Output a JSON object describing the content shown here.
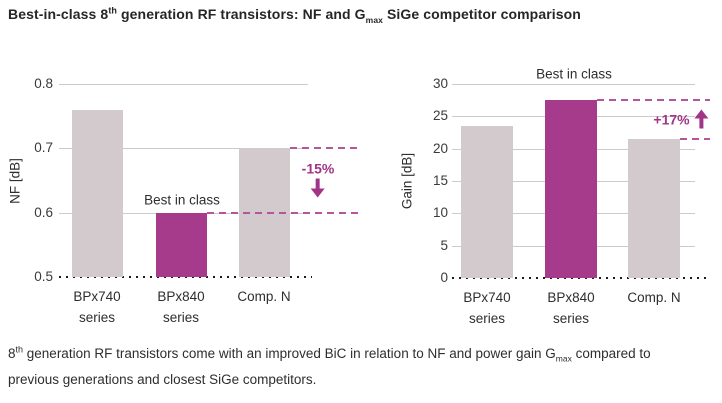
{
  "title": {
    "text_start": "Best-in-class 8",
    "sup": "th",
    "text_mid": " generation RF transistors: NF and G",
    "sub": "max",
    "text_end": " SiGe competitor comparison"
  },
  "caption": {
    "text_start": "8",
    "sup": "th",
    "text_mid": " generation RF transistors come with an improved BiC in relation to NF and power gain G",
    "sub": "max",
    "text_end": " compared to",
    "text_line2": "previous generations and closest SiGe competitors."
  },
  "colors": {
    "bar_default": "#D2CACD",
    "bar_highlight": "#A63B8C",
    "dashed_line": "#B4579A",
    "annotation_text": "#A03588",
    "gridline": "#CBCBCB",
    "baseline_dots": "#1C1C1C",
    "text": "#2E2E2E"
  },
  "chart_data": [
    {
      "type": "bar",
      "id": "nf",
      "ylabel": "NF [dB]",
      "categories": [
        [
          "BPx740",
          "series"
        ],
        [
          "BPx840",
          "series"
        ],
        [
          "Comp. N"
        ]
      ],
      "values": [
        0.76,
        0.6,
        0.7
      ],
      "ylim": [
        0.5,
        0.8
      ],
      "yticks": [
        0.5,
        0.6,
        0.7,
        0.8
      ],
      "ytick_labels": [
        "0.5",
        "0.6",
        "0.7",
        "0.8"
      ],
      "grid": true,
      "axis_broken_dotted_baseline": true,
      "highlight_index": 1,
      "comparison_index": 2,
      "best_in_class_label": "Best in class",
      "annotation": {
        "label": "-15%",
        "arrow": "down"
      }
    },
    {
      "type": "bar",
      "id": "gain",
      "ylabel": "Gain [dB]",
      "categories": [
        [
          "BPx740",
          "series"
        ],
        [
          "BPx840",
          "series"
        ],
        [
          "Comp. N"
        ]
      ],
      "values": [
        23.5,
        27.5,
        21.5
      ],
      "ylim": [
        0,
        30
      ],
      "yticks": [
        0,
        5,
        10,
        15,
        20,
        25,
        30
      ],
      "ytick_labels": [
        "0",
        "5",
        "10",
        "15",
        "20",
        "25",
        "30"
      ],
      "grid": true,
      "axis_broken_dotted_baseline": true,
      "highlight_index": 1,
      "comparison_index": 2,
      "best_in_class_label": "Best in class",
      "annotation": {
        "label": "+17%",
        "arrow": "up"
      }
    }
  ]
}
